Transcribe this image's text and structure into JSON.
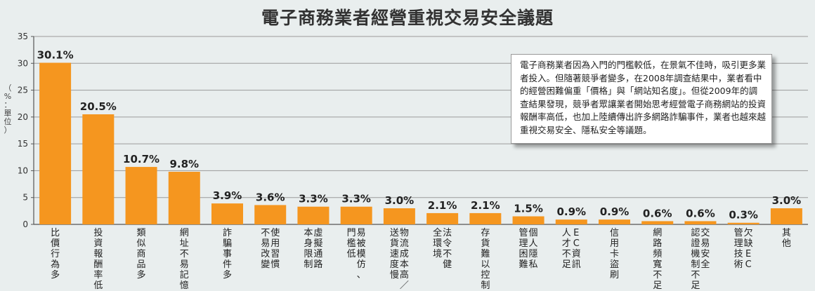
{
  "page_title": "電子商務業者經營重視交易安全議題",
  "unit_label": "（%：單位）",
  "callout_text": "電子商務業者因為入門的門檻較低，在景氣不佳時，吸引更多業者投入。但隨著競爭者變多，在2008年調查結果中，業者看中的經營困難偏重「價格」與「網站知名度」。但從2009年的調查結果發現，競爭者眾讓業者開始思考經營電子商務網站的投資報酬率高低，也加上陸續傳出許多網路詐騙事件，業者也越來越重視交易安全、隱私安全等議題。",
  "colors": {
    "bar": "#f5961f",
    "axis": "#555555",
    "grid": "#9a9a9a",
    "background": "#e9eeee"
  },
  "chart_data": {
    "type": "bar",
    "title": "電子商務業者經營重視交易安全議題",
    "ylabel": "（%：單位）",
    "ylim": [
      0,
      35
    ],
    "yticks": [
      0,
      5,
      10,
      15,
      20,
      25,
      30,
      35
    ],
    "grid": "horizontal, y=5 to y=35",
    "categories": [
      "比價行為多",
      "投資報酬率低",
      "類似商品多",
      "網址不易記憶",
      "詐騙事件多",
      "使用習慣不易改變",
      "虛擬通路本身限制",
      "易被模仿、門檻低",
      "物流成本高／送貨速度慢",
      "法令不健全環境",
      "存貨難以控制",
      "個人隱私管理困難",
      "EC人才資訊不足",
      "信用卡盜刷",
      "網路頻寬不足",
      "交易安全認證機制不足",
      "欠缺EC管理技術",
      "其他"
    ],
    "category_lines": [
      [
        "比價行為多"
      ],
      [
        "投資報酬率低"
      ],
      [
        "類似商品多"
      ],
      [
        "網址不易記憶"
      ],
      [
        "詐騙事件多"
      ],
      [
        "使用習慣",
        "不易改變"
      ],
      [
        "虛擬通路",
        "本身限制"
      ],
      [
        "易被模仿、",
        "門檻低"
      ],
      [
        "物流成本高／",
        "送貨速度慢"
      ],
      [
        "法令不健",
        "全環境"
      ],
      [
        "存貨難以控制"
      ],
      [
        "個人隱私",
        "管理困難"
      ],
      [
        "EC資訊",
        "人才不足"
      ],
      [
        "信用卡盜刷"
      ],
      [
        "網路頻寬不足"
      ],
      [
        "交易安全",
        "認證機制不足"
      ],
      [
        "欠缺EC",
        "管理技術"
      ],
      [
        "其他"
      ]
    ],
    "values": [
      30.1,
      20.5,
      10.7,
      9.8,
      3.9,
      3.6,
      3.3,
      3.3,
      3.0,
      2.1,
      2.1,
      1.5,
      0.9,
      0.9,
      0.6,
      0.6,
      0.3,
      3.0
    ],
    "value_labels": [
      "30.1%",
      "20.5%",
      "10.7%",
      "9.8%",
      "3.9%",
      "3.6%",
      "3.3%",
      "3.3%",
      "3.0%",
      "2.1%",
      "2.1%",
      "1.5%",
      "0.9%",
      "0.9%",
      "0.6%",
      "0.6%",
      "0.3%",
      "3.0%"
    ]
  }
}
